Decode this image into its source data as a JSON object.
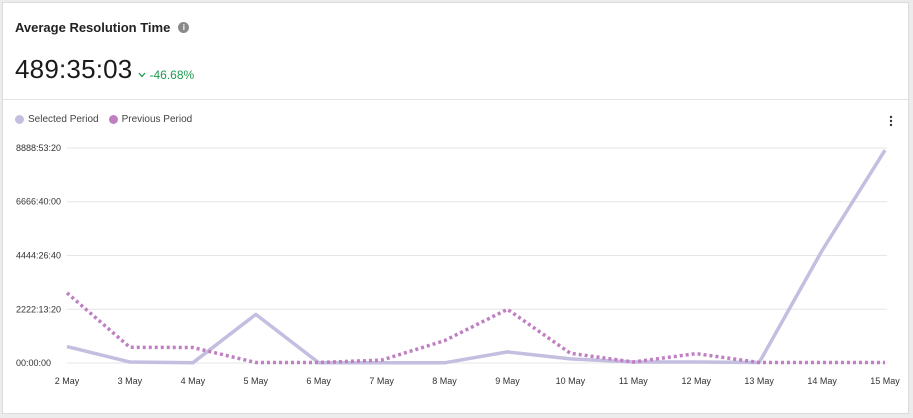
{
  "widget": {
    "title": "Average Resolution Time",
    "info_icon": "info-icon",
    "metric_value": "489:35:03",
    "delta_text": "-46.68%",
    "delta_direction": "down",
    "delta_color": "#1e9a4f",
    "menu_icon": "more-vertical-icon"
  },
  "legend": {
    "items": [
      {
        "label": "Selected Period",
        "color": "#c4bee0"
      },
      {
        "label": "Previous Period",
        "color": "#bf7fc2"
      }
    ]
  },
  "chart_data": {
    "type": "line",
    "categories": [
      "2 May",
      "3 May",
      "4 May",
      "5 May",
      "6 May",
      "7 May",
      "8 May",
      "9 May",
      "10 May",
      "11 May",
      "12 May",
      "13 May",
      "14 May",
      "15 May"
    ],
    "y_tick_labels": [
      "00:00:00",
      "2222:13:20",
      "4444:26:40",
      "6666:40:00",
      "8888:53:20"
    ],
    "y_tick_values": [
      0,
      2222.22,
      4444.44,
      6666.67,
      8888.89
    ],
    "ylim": [
      0,
      8888.89
    ],
    "y_unit": "hours",
    "grid": true,
    "legend_position": "top-left",
    "series": [
      {
        "name": "Selected Period",
        "style": "solid",
        "color": "#c4bee0",
        "values": [
          680,
          40,
          10,
          2010,
          10,
          10,
          10,
          460,
          170,
          40,
          40,
          20,
          4650,
          8800
        ]
      },
      {
        "name": "Previous Period",
        "style": "dotted",
        "color": "#bf7fc2",
        "values": [
          2900,
          650,
          640,
          20,
          20,
          120,
          920,
          2220,
          400,
          40,
          390,
          20,
          20,
          20
        ]
      }
    ]
  }
}
